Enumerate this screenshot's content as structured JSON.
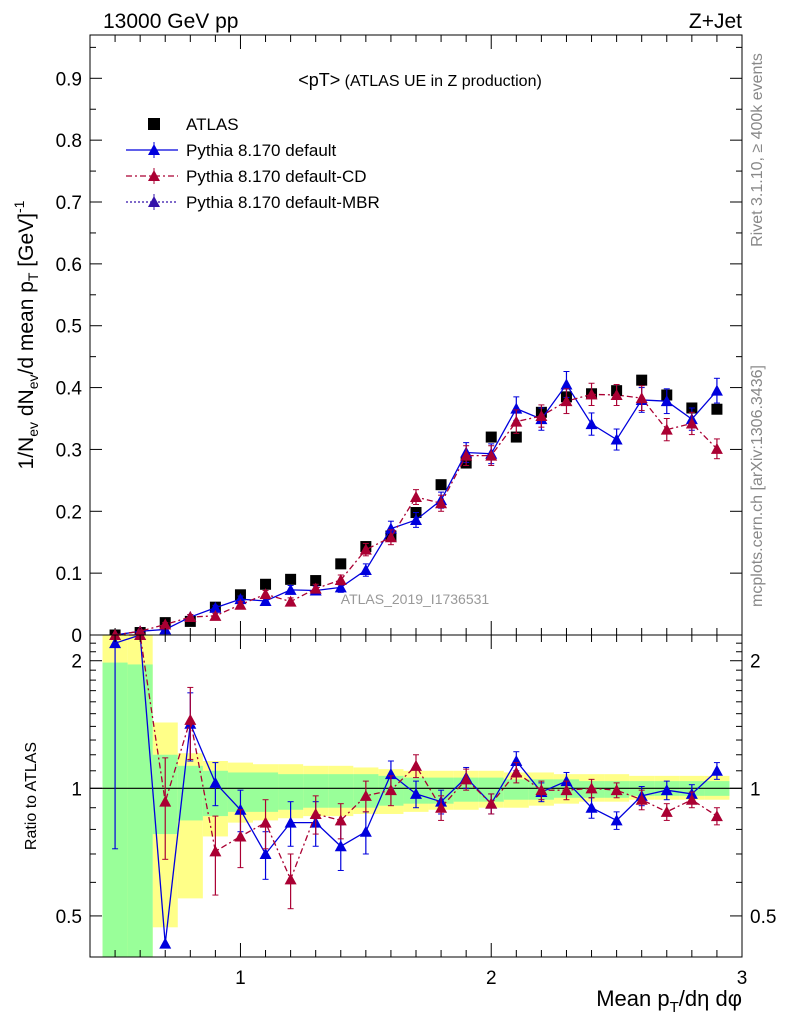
{
  "header": {
    "left": "13000 GeV pp",
    "right": "Z+Jet"
  },
  "side_labels": {
    "rivet": "Rivet 3.1.10, ≥ 400k events",
    "mcplots": "mcplots.cern.ch [arXiv:1306.3436]"
  },
  "plot_title": {
    "main": "<pT>",
    "sub": " (ATLAS UE in Z production)"
  },
  "watermark": "ATLAS_2019_I1736531",
  "axes": {
    "ylabel_main": "1/N_ev dN_ev/d mean p_T [GeV]^-1",
    "ylabel_ratio": "Ratio to ATLAS",
    "xlabel": "Mean p_T/dη dφ"
  },
  "colors": {
    "data": "#000000",
    "default": "#0000dd",
    "cd": "#aa0033",
    "mbr": "#3311aa",
    "band_inner": "#99ff99",
    "band_outer": "#ffff88"
  },
  "chart_data": [
    {
      "type": "scatter",
      "panel": "main",
      "xlim": [
        0.4,
        3.0
      ],
      "ylim": [
        0,
        0.97
      ],
      "xticks": [
        1,
        2,
        3
      ],
      "yticks": [
        0,
        0.1,
        0.2,
        0.3,
        0.4,
        0.5,
        0.6,
        0.7,
        0.8,
        0.9
      ],
      "legend_position": "top-left",
      "x": [
        0.5,
        0.6,
        0.7,
        0.8,
        0.9,
        1.0,
        1.1,
        1.2,
        1.3,
        1.4,
        1.5,
        1.6,
        1.7,
        1.8,
        1.9,
        2.0,
        2.1,
        2.2,
        2.3,
        2.4,
        2.5,
        2.6,
        2.7,
        2.8,
        2.9
      ],
      "series": [
        {
          "name": "ATLAS",
          "style": "data",
          "values": [
            0.0,
            0.004,
            0.02,
            0.022,
            0.045,
            0.065,
            0.082,
            0.09,
            0.088,
            0.115,
            0.143,
            0.16,
            0.198,
            0.243,
            0.278,
            0.32,
            0.32,
            0.36,
            0.385,
            0.39,
            0.395,
            0.412,
            0.388,
            0.367,
            0.365
          ]
        },
        {
          "name": "Pythia 8.170 default",
          "style": "default",
          "values": [
            0.0,
            0.006,
            0.009,
            0.029,
            0.044,
            0.058,
            0.055,
            0.073,
            0.072,
            0.077,
            0.105,
            0.172,
            0.186,
            0.218,
            0.295,
            0.293,
            0.366,
            0.349,
            0.405,
            0.341,
            0.316,
            0.38,
            0.378,
            0.349,
            0.395
          ],
          "errors": [
            0.0,
            0.002,
            0.003,
            0.004,
            0.004,
            0.005,
            0.006,
            0.007,
            0.007,
            0.008,
            0.01,
            0.012,
            0.012,
            0.013,
            0.016,
            0.016,
            0.019,
            0.018,
            0.021,
            0.018,
            0.017,
            0.02,
            0.02,
            0.018,
            0.02
          ]
        },
        {
          "name": "Pythia 8.170 default-CD",
          "style": "cd",
          "values": [
            0.0,
            0.006,
            0.017,
            0.029,
            0.031,
            0.049,
            0.066,
            0.054,
            0.075,
            0.089,
            0.138,
            0.158,
            0.223,
            0.213,
            0.29,
            0.29,
            0.345,
            0.354,
            0.378,
            0.389,
            0.388,
            0.383,
            0.332,
            0.342,
            0.301
          ],
          "errors": [
            0.0,
            0.002,
            0.003,
            0.004,
            0.004,
            0.005,
            0.006,
            0.006,
            0.007,
            0.008,
            0.01,
            0.012,
            0.012,
            0.013,
            0.016,
            0.016,
            0.019,
            0.018,
            0.02,
            0.018,
            0.017,
            0.02,
            0.018,
            0.018,
            0.016
          ]
        },
        {
          "name": "Pythia 8.170 default-MBR",
          "style": "mbr",
          "values": []
        }
      ]
    },
    {
      "type": "scatter",
      "panel": "ratio",
      "xlim": [
        0.4,
        3.0
      ],
      "ylim": [
        0.4,
        2.3
      ],
      "scale": "log",
      "yticks": [
        0.5,
        1,
        2
      ],
      "x": [
        0.5,
        0.6,
        0.7,
        0.8,
        0.9,
        1.0,
        1.1,
        1.2,
        1.3,
        1.4,
        1.5,
        1.6,
        1.7,
        1.8,
        1.9,
        2.0,
        2.1,
        2.2,
        2.3,
        2.4,
        2.5,
        2.6,
        2.7,
        2.8,
        2.9
      ],
      "bands": {
        "edges": [
          0.45,
          0.55,
          0.65,
          0.75,
          0.85,
          0.95,
          1.05,
          1.15,
          1.25,
          1.35,
          1.45,
          1.55,
          1.65,
          1.75,
          1.85,
          1.95,
          2.05,
          2.15,
          2.25,
          2.35,
          2.45,
          2.55,
          2.65,
          2.75,
          2.85,
          2.95
        ],
        "inner_lo": [
          0.35,
          0.35,
          0.78,
          0.84,
          0.86,
          0.88,
          0.88,
          0.89,
          0.9,
          0.9,
          0.9,
          0.91,
          0.92,
          0.92,
          0.93,
          0.93,
          0.94,
          0.94,
          0.95,
          0.95,
          0.95,
          0.96,
          0.96,
          0.96,
          0.96
        ],
        "inner_hi": [
          1.98,
          1.96,
          1.2,
          1.13,
          1.1,
          1.09,
          1.09,
          1.08,
          1.08,
          1.08,
          1.08,
          1.07,
          1.06,
          1.06,
          1.06,
          1.06,
          1.05,
          1.05,
          1.05,
          1.04,
          1.04,
          1.04,
          1.04,
          1.04,
          1.04
        ],
        "outer_lo": [
          0.35,
          0.35,
          0.47,
          0.55,
          0.77,
          0.83,
          0.84,
          0.85,
          0.86,
          0.86,
          0.87,
          0.87,
          0.88,
          0.89,
          0.89,
          0.9,
          0.9,
          0.91,
          0.92,
          0.93,
          0.93,
          0.94,
          0.94,
          0.94,
          0.94
        ],
        "outer_hi": [
          2.3,
          2.3,
          1.43,
          1.21,
          1.16,
          1.15,
          1.14,
          1.14,
          1.13,
          1.13,
          1.12,
          1.11,
          1.1,
          1.1,
          1.1,
          1.1,
          1.09,
          1.09,
          1.08,
          1.08,
          1.08,
          1.07,
          1.07,
          1.07,
          1.07
        ]
      },
      "series": [
        {
          "name": "Pythia 8.170 default",
          "style": "default",
          "values": [
            2.2,
            2.3,
            0.43,
            1.42,
            1.03,
            0.89,
            0.7,
            0.83,
            0.83,
            0.73,
            0.79,
            1.08,
            0.97,
            0.93,
            1.06,
            0.92,
            1.16,
            0.98,
            1.04,
            0.9,
            0.84,
            0.96,
            0.99,
            0.97,
            1.1
          ],
          "err_lo": [
            1.48,
            0.0,
            0.0,
            0.26,
            0.12,
            0.1,
            0.09,
            0.1,
            0.1,
            0.09,
            0.09,
            0.08,
            0.07,
            0.06,
            0.06,
            0.05,
            0.06,
            0.05,
            0.05,
            0.05,
            0.04,
            0.05,
            0.05,
            0.05,
            0.05
          ],
          "err_hi": [
            0.1,
            0.0,
            0.0,
            0.26,
            0.12,
            0.1,
            0.09,
            0.1,
            0.1,
            0.09,
            0.09,
            0.08,
            0.07,
            0.06,
            0.06,
            0.05,
            0.06,
            0.05,
            0.05,
            0.05,
            0.04,
            0.05,
            0.05,
            0.05,
            0.05
          ]
        },
        {
          "name": "Pythia 8.170 default-CD",
          "style": "cd",
          "values": [
            2.3,
            2.3,
            0.93,
            1.45,
            0.71,
            0.77,
            0.83,
            0.61,
            0.87,
            0.84,
            0.96,
            0.99,
            1.13,
            0.9,
            1.05,
            0.92,
            1.09,
            0.99,
            0.99,
            1.0,
            0.99,
            0.94,
            0.88,
            0.94,
            0.86
          ],
          "err_lo": [
            0.0,
            0.0,
            0.25,
            0.28,
            0.15,
            0.12,
            0.11,
            0.09,
            0.09,
            0.08,
            0.08,
            0.08,
            0.07,
            0.06,
            0.06,
            0.05,
            0.06,
            0.05,
            0.05,
            0.05,
            0.04,
            0.05,
            0.04,
            0.04,
            0.04
          ],
          "err_hi": [
            0.0,
            0.0,
            0.25,
            0.28,
            0.15,
            0.12,
            0.11,
            0.09,
            0.09,
            0.08,
            0.08,
            0.08,
            0.07,
            0.06,
            0.06,
            0.05,
            0.06,
            0.05,
            0.05,
            0.05,
            0.04,
            0.05,
            0.04,
            0.04,
            0.04
          ]
        }
      ]
    }
  ]
}
